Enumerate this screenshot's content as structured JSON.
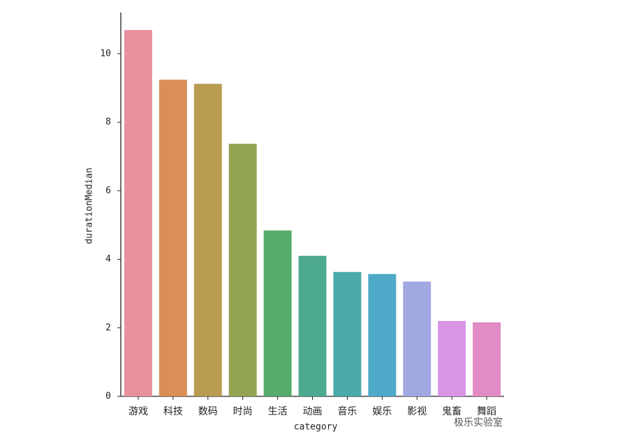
{
  "chart_data": {
    "type": "bar",
    "x_label": "category",
    "y_label": "durationMedian",
    "categories": [
      "游戏",
      "科技",
      "数码",
      "时尚",
      "生活",
      "动画",
      "音乐",
      "娱乐",
      "影视",
      "鬼畜",
      "舞蹈"
    ],
    "values": [
      10.69,
      9.24,
      9.12,
      7.37,
      4.84,
      4.1,
      3.63,
      3.57,
      3.35,
      2.2,
      2.16
    ],
    "colors": [
      "#e8919f",
      "#da8f57",
      "#b89c52",
      "#93a451",
      "#55ab6a",
      "#4da990",
      "#4aa9a9",
      "#4fa9c9",
      "#a2a8e2",
      "#d994e6",
      "#e38bc4"
    ],
    "ylim": [
      0,
      11.2
    ],
    "yticks": [
      0,
      2,
      4,
      6,
      8,
      10
    ],
    "watermark": "极乐实验室"
  }
}
